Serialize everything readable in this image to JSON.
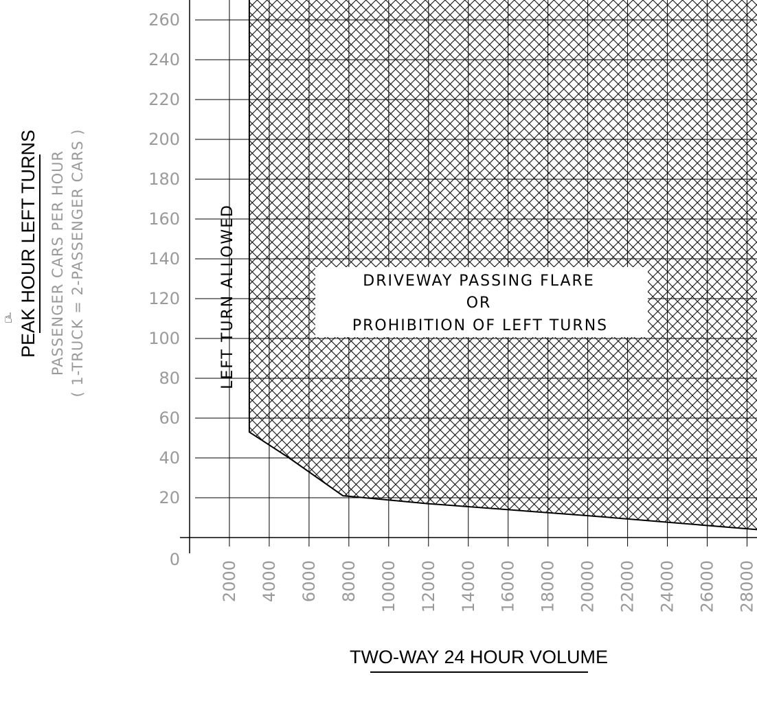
{
  "chart_data": {
    "type": "area",
    "title": "",
    "ylabel": "PEAK HOUR LEFT TURNS",
    "ylabel_sub1": "PASSENGER CARS PER HOUR",
    "ylabel_sub2": "( 1-TRUCK = 2-PASSENGER CARS )",
    "xlabel": "TWO-WAY 24 HOUR VOLUME",
    "xlim": [
      0,
      28500
    ],
    "ylim": [
      0,
      270
    ],
    "x_ticks": [
      2000,
      4000,
      6000,
      8000,
      10000,
      12000,
      14000,
      16000,
      18000,
      20000,
      22000,
      24000,
      26000,
      28000
    ],
    "y_ticks": [
      0,
      20,
      40,
      60,
      80,
      100,
      120,
      140,
      160,
      180,
      200,
      220,
      240,
      260
    ],
    "grid": true,
    "boundary": [
      {
        "x": 3000,
        "y": 270
      },
      {
        "x": 3000,
        "y": 53
      },
      {
        "x": 5000,
        "y": 40
      },
      {
        "x": 7700,
        "y": 21
      },
      {
        "x": 12000,
        "y": 17
      },
      {
        "x": 20000,
        "y": 11
      },
      {
        "x": 28500,
        "y": 4
      }
    ],
    "regions": [
      {
        "name": "LEFT TURN ALLOWED"
      },
      {
        "name": "DRIVEWAY PASSING FLARE",
        "line2": "OR",
        "line3": "PROHIBITION OF LEFT TURNS"
      }
    ]
  }
}
